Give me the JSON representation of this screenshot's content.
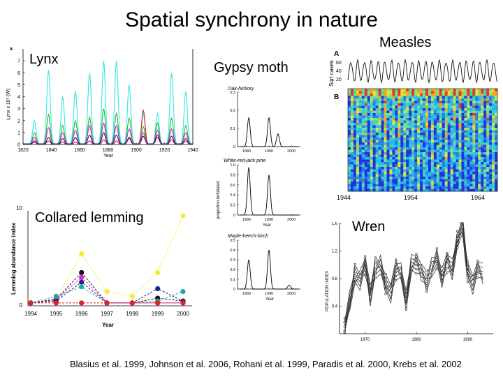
{
  "title": "Spatial synchrony in nature",
  "caption": "Blasius et al. 1999, Johnson et al. 2006, Rohani et al. 1999, Paradis et al. 2000, Krebs et al. 2002",
  "panels": {
    "lynx": {
      "label": "Lynx",
      "panel_letter": "a"
    },
    "gypsy_moth": {
      "label": "Gypsy moth"
    },
    "measles": {
      "label": "Measles",
      "letter_a": "A",
      "letter_b": "B"
    },
    "lemming": {
      "label": "Collared lemming"
    },
    "wren": {
      "label": "Wren"
    }
  },
  "colors": {
    "cyan": "#33e6e6",
    "green": "#22bb22",
    "magenta": "#dd22dd",
    "red": "#dd2222",
    "navy": "#1a237e",
    "black": "#111111",
    "yellow": "#f2ee30",
    "teal": "#2aa6a0"
  },
  "chart_data": [
    {
      "id": "lynx",
      "type": "line",
      "ylabel": "Lynx x 10³ (W)",
      "xlabel": "Year",
      "xlim": [
        1820,
        1940
      ],
      "ylim": [
        0,
        8
      ],
      "x_ticks": [
        "1820",
        "1840",
        "1860",
        "1880",
        "1900",
        "1920",
        "1940"
      ],
      "y_ticks": [
        "0",
        "1",
        "2",
        "3",
        "4",
        "5",
        "6",
        "7"
      ],
      "cycle_peaks": [
        1828,
        1838,
        1848,
        1857,
        1867,
        1877,
        1886,
        1895,
        1905,
        1915,
        1925,
        1935
      ],
      "series": [
        {
          "name": "cyan",
          "peaks": [
            2.0,
            6.2,
            4.0,
            4.5,
            6.0,
            7.0,
            7.0,
            5.0,
            2.6,
            2.6,
            6.0,
            4.4
          ]
        },
        {
          "name": "green",
          "peaks": [
            1.0,
            2.5,
            1.6,
            2.0,
            2.3,
            3.0,
            2.6,
            2.2,
            1.5,
            1.8,
            2.2,
            1.6
          ]
        },
        {
          "name": "magenta",
          "peaks": [
            0.6,
            1.4,
            1.0,
            1.2,
            1.6,
            1.8,
            1.6,
            1.3,
            1.0,
            1.2,
            1.3,
            1.0
          ]
        },
        {
          "name": "red",
          "peaks": [
            0.2,
            0.3,
            0.2,
            0.2,
            0.3,
            0.4,
            0.3,
            0.5,
            2.9,
            0.6,
            0.4,
            0.3
          ]
        },
        {
          "name": "navy",
          "peaks": [
            0.3,
            0.6,
            0.5,
            0.6,
            0.8,
            1.0,
            0.8,
            0.6,
            0.7,
            0.8,
            0.7,
            0.5
          ]
        }
      ]
    },
    {
      "id": "gypsy_moth",
      "type": "line",
      "subplots": [
        {
          "title": "Oak-hickory",
          "ylim": [
            0,
            0.3
          ],
          "y_ticks": [
            "0",
            "0.1",
            "0.2",
            "0.3"
          ],
          "x_ticks": [
            "1980",
            "1990",
            "2000"
          ],
          "xlabel": "",
          "peaks": [
            {
              "year": 1981,
              "value": 0.16
            },
            {
              "year": 1990,
              "value": 0.16
            },
            {
              "year": 1994,
              "value": 0.07
            }
          ]
        },
        {
          "title": "White-red-jack pine",
          "ylim": [
            0,
            1.0
          ],
          "y_ticks": [
            "0",
            "0.2",
            "0.4",
            "0.6",
            "0.8",
            "1.0"
          ],
          "x_ticks": [
            "1980",
            "1990",
            "2000"
          ],
          "xlabel": "Year",
          "ylabel": "proportion defoliated",
          "peaks": [
            {
              "year": 1981,
              "value": 0.95
            },
            {
              "year": 1990,
              "value": 0.8
            }
          ]
        },
        {
          "title": "Maple-beech-birch",
          "ylim": [
            0,
            0.5
          ],
          "y_ticks": [
            "0",
            "0.1",
            "0.2",
            "0.3",
            "0.4",
            "0.5"
          ],
          "x_ticks": [
            "1980",
            "1990",
            "2000"
          ],
          "xlabel": "Year",
          "peaks": [
            {
              "year": 1981,
              "value": 0.3
            },
            {
              "year": 1990,
              "value": 0.4
            },
            {
              "year": 1999,
              "value": 0.04
            }
          ]
        }
      ]
    },
    {
      "id": "measles",
      "type": "heatmap",
      "top_ylabel": "Sqrt cases",
      "top_y_ticks": [
        "20",
        "40",
        "60"
      ],
      "x_ticks": [
        "1944",
        "1954",
        "1964"
      ],
      "xlim": [
        1944,
        1966
      ]
    },
    {
      "id": "lemming",
      "type": "line",
      "ylabel": "Lemming abundance index",
      "xlabel": "Year",
      "categories": [
        "1994",
        "1995",
        "1996",
        "1997",
        "1998",
        "1999",
        "2000"
      ],
      "ylim": [
        0,
        10
      ],
      "y_ticks": [
        "0",
        "10"
      ],
      "series": [
        {
          "name": "yellow",
          "values": [
            0.3,
            0.7,
            5.5,
            1.5,
            1.0,
            3.5,
            9.5
          ]
        },
        {
          "name": "black",
          "values": [
            0.3,
            0.7,
            3.5,
            0.3,
            0.3,
            0.8,
            0.5
          ]
        },
        {
          "name": "magenta",
          "values": [
            0.3,
            0.6,
            3.0,
            0.3,
            0.3,
            0.3,
            0.3
          ]
        },
        {
          "name": "navy",
          "values": [
            0.3,
            0.5,
            2.5,
            0.3,
            0.3,
            1.8,
            0.5
          ]
        },
        {
          "name": "teal",
          "values": [
            0.3,
            1.0,
            2.0,
            0.3,
            0.3,
            0.5,
            1.5
          ]
        },
        {
          "name": "red",
          "values": [
            0.3,
            0.3,
            0.3,
            0.3,
            0.3,
            0.3,
            0.3
          ]
        }
      ]
    },
    {
      "id": "wren",
      "type": "line",
      "ylabel": "POPULATION INDEX",
      "x_ticks": [
        "1970",
        "1980",
        "1990"
      ],
      "xlim": [
        1965,
        1995
      ],
      "ylim": [
        0,
        1.6
      ],
      "y_ticks": [
        "0.4",
        "0.8",
        "1.2",
        "1.6"
      ]
    }
  ]
}
